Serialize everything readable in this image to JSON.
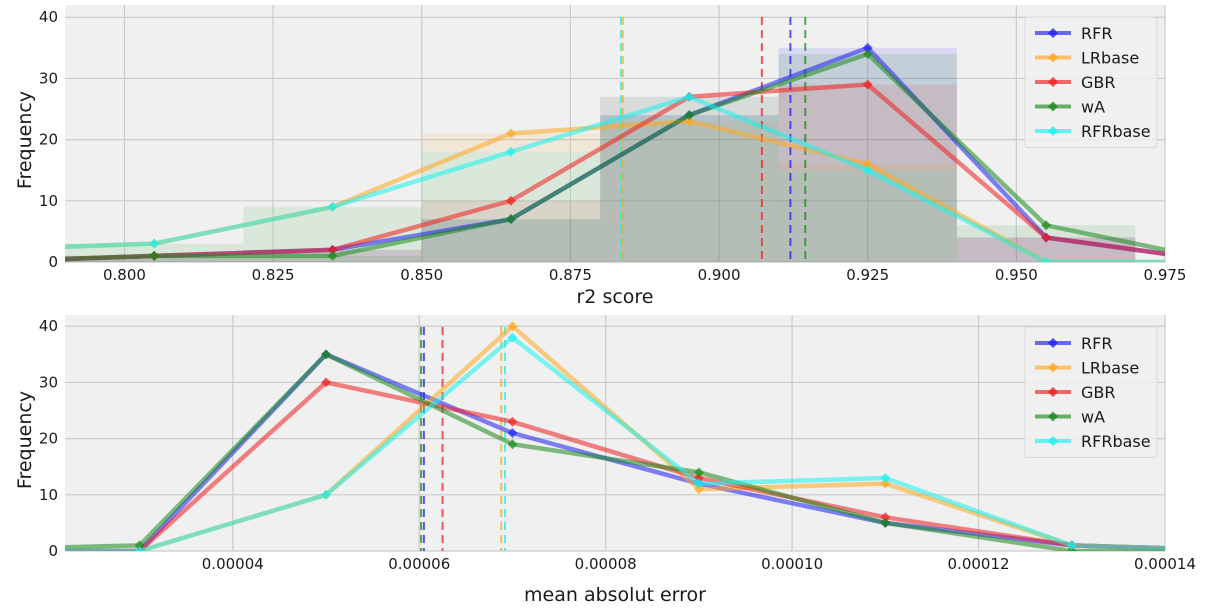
{
  "colors": {
    "RFR": "#1f1ff5",
    "LRbase": "#ffa81f",
    "GBR": "#f01f1f",
    "wA": "#1b8a1b",
    "RFRbase": "#18f2ef",
    "panel_bg": "#f0f0f0",
    "grid": "#cbcbcb"
  },
  "chart_data": [
    {
      "type": "line",
      "overlay": "histogram",
      "xlabel": "r2 score",
      "ylabel": "Frequency",
      "xlim": [
        0.79,
        0.975
      ],
      "ylim": [
        0,
        42
      ],
      "xticks": [
        "0.800",
        "0.825",
        "0.850",
        "0.875",
        "0.900",
        "0.925",
        "0.950",
        "0.975"
      ],
      "yticks": [
        "0",
        "10",
        "20",
        "30",
        "40"
      ],
      "grid": true,
      "legend": "top-right",
      "bins": [
        0.79,
        0.82,
        0.85,
        0.88,
        0.91,
        0.94,
        0.97
      ],
      "series": [
        {
          "name": "RFR",
          "x": [
            0.775,
            0.805,
            0.835,
            0.865,
            0.895,
            0.925,
            0.955,
            0.985
          ],
          "values": [
            0,
            1,
            2,
            7,
            24,
            35,
            4,
            0
          ],
          "mean": 0.912,
          "hist": [
            1,
            2,
            7,
            24,
            35,
            4
          ]
        },
        {
          "name": "LRbase",
          "x": [
            0.775,
            0.805,
            0.835,
            0.865,
            0.895,
            0.925,
            0.955,
            0.985
          ],
          "values": [
            2,
            3,
            9,
            21,
            23,
            16,
            0,
            0
          ],
          "mean": 0.8838,
          "hist": [
            3,
            9,
            21,
            23,
            16,
            0
          ]
        },
        {
          "name": "GBR",
          "x": [
            0.775,
            0.805,
            0.835,
            0.865,
            0.895,
            0.925,
            0.955,
            0.985
          ],
          "values": [
            0,
            1,
            2,
            10,
            27,
            29,
            4,
            0
          ],
          "mean": 0.9072,
          "hist": [
            1,
            2,
            10,
            27,
            29,
            4
          ]
        },
        {
          "name": "wA",
          "x": [
            0.775,
            0.805,
            0.835,
            0.865,
            0.895,
            0.925,
            0.955,
            0.985
          ],
          "values": [
            0,
            1,
            1,
            7,
            24,
            34,
            6,
            0
          ],
          "mean": 0.9145,
          "hist": [
            1,
            1,
            7,
            24,
            34,
            6
          ]
        },
        {
          "name": "RFRbase",
          "x": [
            0.775,
            0.805,
            0.835,
            0.865,
            0.895,
            0.925,
            0.955,
            0.985
          ],
          "values": [
            2,
            3,
            9,
            18,
            27,
            15,
            0,
            0
          ],
          "mean": 0.8835,
          "hist": [
            3,
            9,
            18,
            27,
            15,
            0
          ]
        }
      ]
    },
    {
      "type": "line",
      "xlabel": "mean absolut error",
      "ylabel": "Frequency",
      "xlim": [
        2.2e-05,
        0.00014
      ],
      "ylim": [
        0,
        42
      ],
      "xticks": [
        "0.00004",
        "0.00006",
        "0.00008",
        "0.00010",
        "0.00012",
        "0.00014"
      ],
      "yticks": [
        "0",
        "10",
        "20",
        "30",
        "40"
      ],
      "grid": true,
      "legend": "top-right",
      "series": [
        {
          "name": "RFR",
          "x": [
            5e-06,
            3e-05,
            5e-05,
            7e-05,
            9e-05,
            0.00011,
            0.00013,
            0.00015
          ],
          "values": [
            0,
            0,
            35,
            21,
            12,
            5,
            1,
            0
          ],
          "mean": 6.05e-05
        },
        {
          "name": "LRbase",
          "x": [
            5e-06,
            3e-05,
            5e-05,
            7e-05,
            9e-05,
            0.00011,
            0.00013,
            0.00015
          ],
          "values": [
            0,
            0,
            10,
            40,
            11,
            12,
            1,
            0
          ],
          "mean": 6.88e-05
        },
        {
          "name": "GBR",
          "x": [
            5e-06,
            3e-05,
            5e-05,
            7e-05,
            9e-05,
            0.00011,
            0.00013,
            0.00015
          ],
          "values": [
            0,
            0,
            30,
            23,
            13,
            6,
            1,
            0
          ],
          "mean": 6.25e-05
        },
        {
          "name": "wA",
          "x": [
            5e-06,
            3e-05,
            5e-05,
            7e-05,
            9e-05,
            0.00011,
            0.00013,
            0.00015
          ],
          "values": [
            0,
            1,
            35,
            19,
            14,
            5,
            0,
            0
          ],
          "mean": 6.02e-05
        },
        {
          "name": "RFRbase",
          "x": [
            5e-06,
            3e-05,
            5e-05,
            7e-05,
            9e-05,
            0.00011,
            0.00013,
            0.00015
          ],
          "values": [
            0,
            0,
            10,
            38,
            12,
            13,
            1,
            0
          ],
          "mean": 6.92e-05
        }
      ]
    }
  ]
}
